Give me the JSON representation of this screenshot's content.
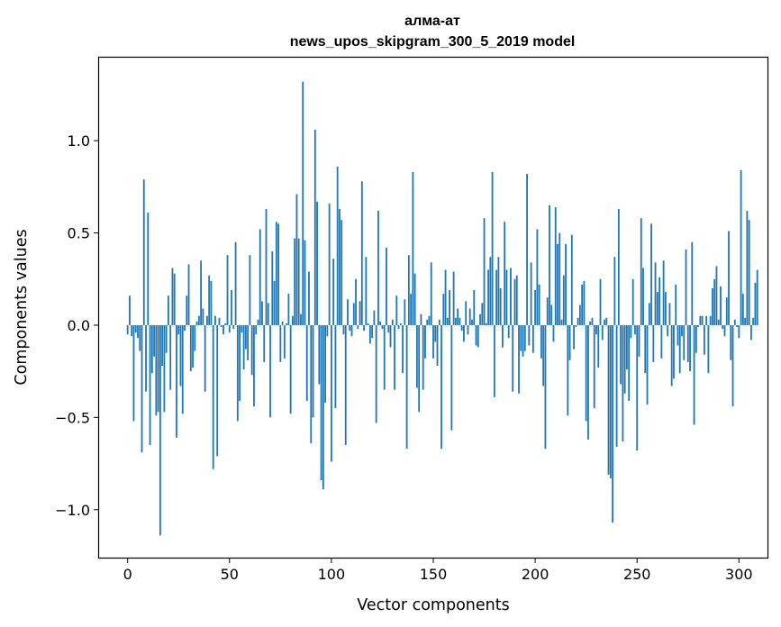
{
  "chart_data": {
    "type": "bar",
    "title": "алма-ат",
    "subtitle": "news_upos_skipgram_300_5_2019 model",
    "xlabel": "Vector components",
    "ylabel": "Components values",
    "xlim": [
      -14,
      314
    ],
    "ylim": [
      -1.26,
      1.45
    ],
    "grid": false,
    "bar_color": "#1f77b4",
    "xticks": [
      0,
      50,
      100,
      150,
      200,
      250,
      300
    ],
    "xtick_labels": [
      "0",
      "50",
      "100",
      "150",
      "200",
      "250",
      "300"
    ],
    "yticks": [
      -1.0,
      -0.5,
      0.0,
      0.5,
      1.0
    ],
    "ytick_labels": [
      "−1.0",
      "−0.5",
      "0.0",
      "0.5",
      "1.0"
    ],
    "values": [
      -0.05,
      0.16,
      -0.06,
      -0.52,
      -0.04,
      -0.07,
      -0.14,
      -0.69,
      0.79,
      -0.36,
      0.61,
      -0.65,
      -0.26,
      -0.17,
      -0.49,
      -0.47,
      -1.14,
      -0.22,
      -0.47,
      -0.15,
      0.16,
      -0.35,
      0.31,
      0.28,
      -0.61,
      -0.05,
      -0.33,
      -0.48,
      -0.03,
      0.16,
      0.33,
      -0.25,
      -0.23,
      -0.14,
      0.02,
      0.05,
      0.35,
      0.09,
      -0.36,
      0.05,
      0.27,
      0.24,
      -0.78,
      0.05,
      -0.71,
      0.04,
      -0.01,
      -0.05,
      0.01,
      0.38,
      -0.04,
      0.19,
      -0.02,
      0.45,
      -0.52,
      -0.41,
      -0.04,
      -0.24,
      -0.13,
      -0.19,
      0.38,
      -0.27,
      -0.44,
      -0.05,
      0.03,
      0.52,
      0.13,
      -0.2,
      0.63,
      0.12,
      -0.5,
      0.4,
      0.24,
      0.56,
      0.55,
      -0.2,
      0.02,
      -0.18,
      0.01,
      0.17,
      -0.48,
      0.05,
      0.47,
      0.71,
      0.47,
      0.06,
      1.32,
      0.46,
      -0.41,
      0.29,
      -0.64,
      -0.5,
      1.06,
      0.67,
      -0.32,
      -0.84,
      -0.89,
      -0.42,
      -0.06,
      0.66,
      -0.74,
      0.36,
      -0.45,
      0.86,
      0.63,
      0.57,
      -0.05,
      -0.65,
      0.14,
      -0.03,
      -0.06,
      0.12,
      0.25,
      -0.02,
      0.13,
      0.78,
      -0.03,
      0.37,
      0.01,
      -0.1,
      -0.07,
      0.08,
      -0.53,
      0.62,
      0.02,
      -0.02,
      -0.35,
      0.42,
      -0.04,
      -0.12,
      0.03,
      -0.35,
      0.16,
      -0.02,
      0.01,
      -0.26,
      0.14,
      -0.67,
      0.38,
      0.17,
      0.83,
      0.28,
      -0.34,
      -0.47,
      0.06,
      -0.35,
      -0.18,
      0.03,
      0.05,
      0.34,
      -0.18,
      -0.09,
      -0.22,
      0.03,
      -0.67,
      0.17,
      0.3,
      0.04,
      0.19,
      -0.57,
      0.29,
      0.04,
      0.09,
      0.04,
      -0.03,
      -0.09,
      0.13,
      -0.05,
      0.09,
      0.03,
      0.19,
      -0.11,
      -0.12,
      0.06,
      0.12,
      0.58,
      0.01,
      0.3,
      0.37,
      0.83,
      -0.39,
      0.3,
      0.37,
      0.2,
      -0.12,
      0.56,
      0.3,
      -0.07,
      0.31,
      -0.36,
      0.25,
      0.27,
      -0.37,
      -0.14,
      -0.17,
      -0.14,
      0.82,
      -0.11,
      0.34,
      -0.15,
      0.19,
      0.52,
      0.22,
      -0.18,
      -0.33,
      -0.67,
      0.15,
      0.65,
      0.11,
      -0.09,
      0.64,
      0.44,
      0.5,
      0.03,
      0.27,
      0.44,
      -0.49,
      -0.19,
      0.49,
      -0.13,
      -0.01,
      0.04,
      0.11,
      0.22,
      0.24,
      -0.52,
      -0.62,
      0.02,
      0.04,
      -0.45,
      -0.05,
      -0.23,
      0.25,
      -0.08,
      0.03,
      0.04,
      -0.81,
      -0.83,
      -1.07,
      0.37,
      -0.66,
      0.63,
      -0.32,
      -0.63,
      -0.37,
      -0.24,
      -0.41,
      -0.07,
      0.25,
      -0.05,
      -0.68,
      -0.17,
      0.58,
      0.31,
      -0.26,
      -0.43,
      0.12,
      0.55,
      -0.2,
      0.34,
      0.18,
      0.26,
      -0.18,
      0.35,
      0.18,
      -0.06,
      0.12,
      -0.33,
      -0.29,
      0.22,
      -0.11,
      -0.26,
      -0.06,
      -0.19,
      0.41,
      -0.2,
      -0.25,
      0.45,
      -0.54,
      -0.15,
      -0.01,
      0.05,
      0.05,
      -0.16,
      0.05,
      -0.26,
      0.05,
      0.2,
      0.25,
      0.32,
      0.03,
      0.21,
      -0.02,
      -0.06,
      0.15,
      0.51,
      -0.19,
      -0.44,
      0.03,
      -0.01,
      -0.07,
      0.84,
      0.17,
      0.04,
      0.62,
      0.57,
      -0.08,
      0.04,
      0.23,
      0.3
    ]
  }
}
